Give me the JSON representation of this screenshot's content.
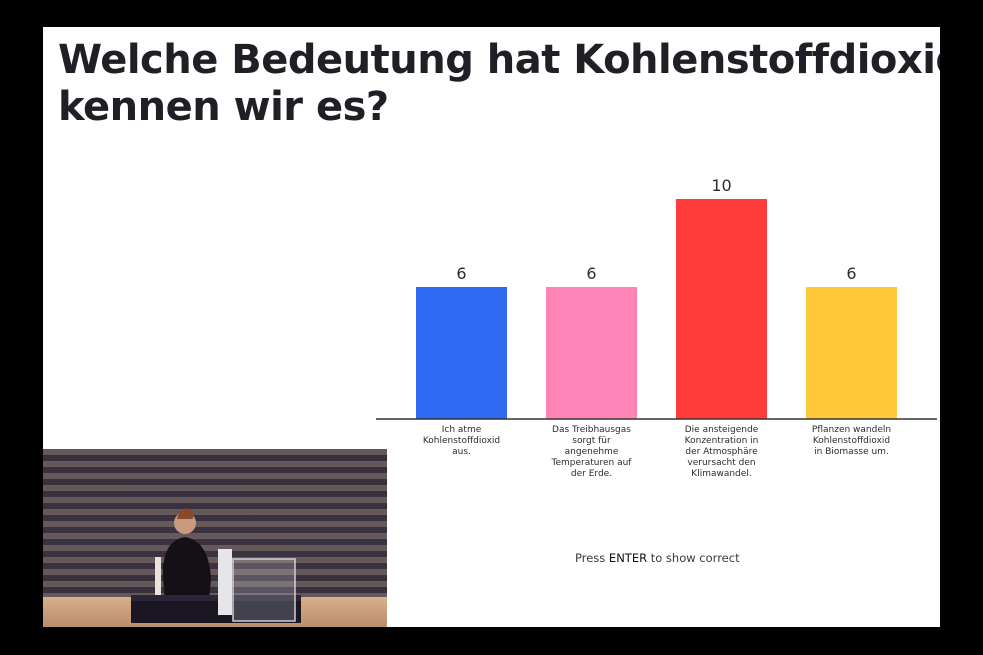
{
  "slide": {
    "title_line1": "Welche Bedeutung hat Kohlenstoffdioxid?",
    "title_line2": "kennen wir es?",
    "hint_prefix": "Press ",
    "hint_key": "ENTER",
    "hint_suffix": " to show correct"
  },
  "webcam": {
    "description_icon": "presenter-video-icon"
  },
  "colors": {
    "blue": "#2f6bf2",
    "pink": "#ff85b8",
    "red": "#ff3b3b",
    "yellow": "#ffc838",
    "axis": "#333333",
    "text": "#2b2b33"
  },
  "chart_data": {
    "type": "bar",
    "categories": [
      [
        "Ich atme",
        "Kohlenstoffdioxid",
        "aus."
      ],
      [
        "Das Treibhausgas",
        "sorgt für",
        "angenehme",
        "Temperaturen auf",
        "der Erde."
      ],
      [
        "Die ansteigende",
        "Konzentration in",
        "der Atmosphäre",
        "verursacht den",
        "Klimawandel."
      ],
      [
        "Pflanzen wandeln",
        "Kohlenstoffdioxid",
        "in Biomasse um."
      ]
    ],
    "values": [
      6,
      6,
      10,
      6
    ],
    "bar_colors": [
      "#2f6bf2",
      "#ff85b8",
      "#ff3b3b",
      "#ffc838"
    ],
    "ylim": [
      0,
      10
    ],
    "grid": false,
    "legend": "none"
  }
}
